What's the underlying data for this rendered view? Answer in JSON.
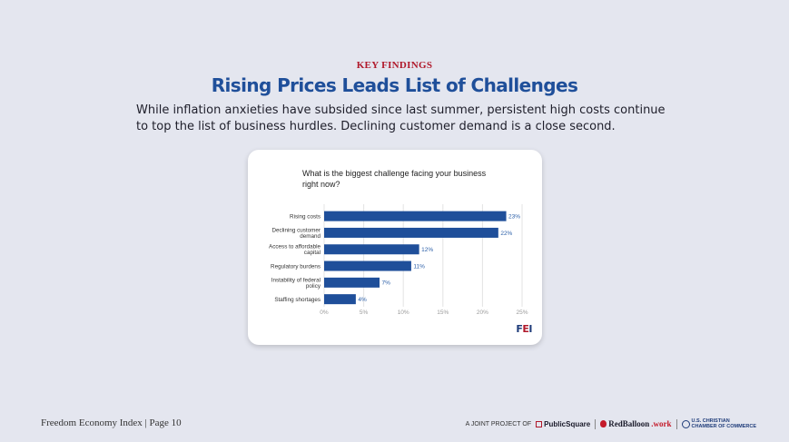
{
  "header": {
    "kicker": "KEY FINDINGS",
    "title": "Rising Prices Leads List of Challenges",
    "lede": "While inflation anxieties have subsided since last summer, persistent high costs continue to top the list of business hurdles. Declining customer demand is a close second."
  },
  "card": {
    "question": "What is the biggest challenge facing your business right now?",
    "logo": {
      "f": "F",
      "e": "E",
      "i": "I"
    }
  },
  "chart_data": {
    "type": "bar",
    "orientation": "horizontal",
    "title": "What is the biggest challenge facing your business right now?",
    "categories": [
      [
        "Rising costs"
      ],
      [
        "Declining customer",
        "demand"
      ],
      [
        "Access to affordable",
        "capital"
      ],
      [
        "Regulatory burdens"
      ],
      [
        "Instability of federal",
        "policy"
      ],
      [
        "Staffing shortages"
      ]
    ],
    "values": [
      23,
      22,
      12,
      11,
      7,
      4
    ],
    "value_labels": [
      "23%",
      "22%",
      "12%",
      "11%",
      "7%",
      "4%"
    ],
    "xlim": [
      0,
      25
    ],
    "xticks": [
      0,
      5,
      10,
      15,
      20,
      25
    ],
    "xtick_labels": [
      "0%",
      "5%",
      "10%",
      "15%",
      "20%",
      "25%"
    ],
    "grid": true,
    "bar_color": "#1f4f9a",
    "label_color": "#2b5fa8"
  },
  "footer": {
    "left": "Freedom Economy Index | Page 10",
    "joint": "A JOINT PROJECT OF",
    "publicsquare": "PublicSquare",
    "redballoon_a": "RedBalloon",
    "redballoon_b": ".work",
    "uscc_1": "U.S. CHRISTIAN",
    "uscc_2": "CHAMBER OF COMMERCE"
  }
}
